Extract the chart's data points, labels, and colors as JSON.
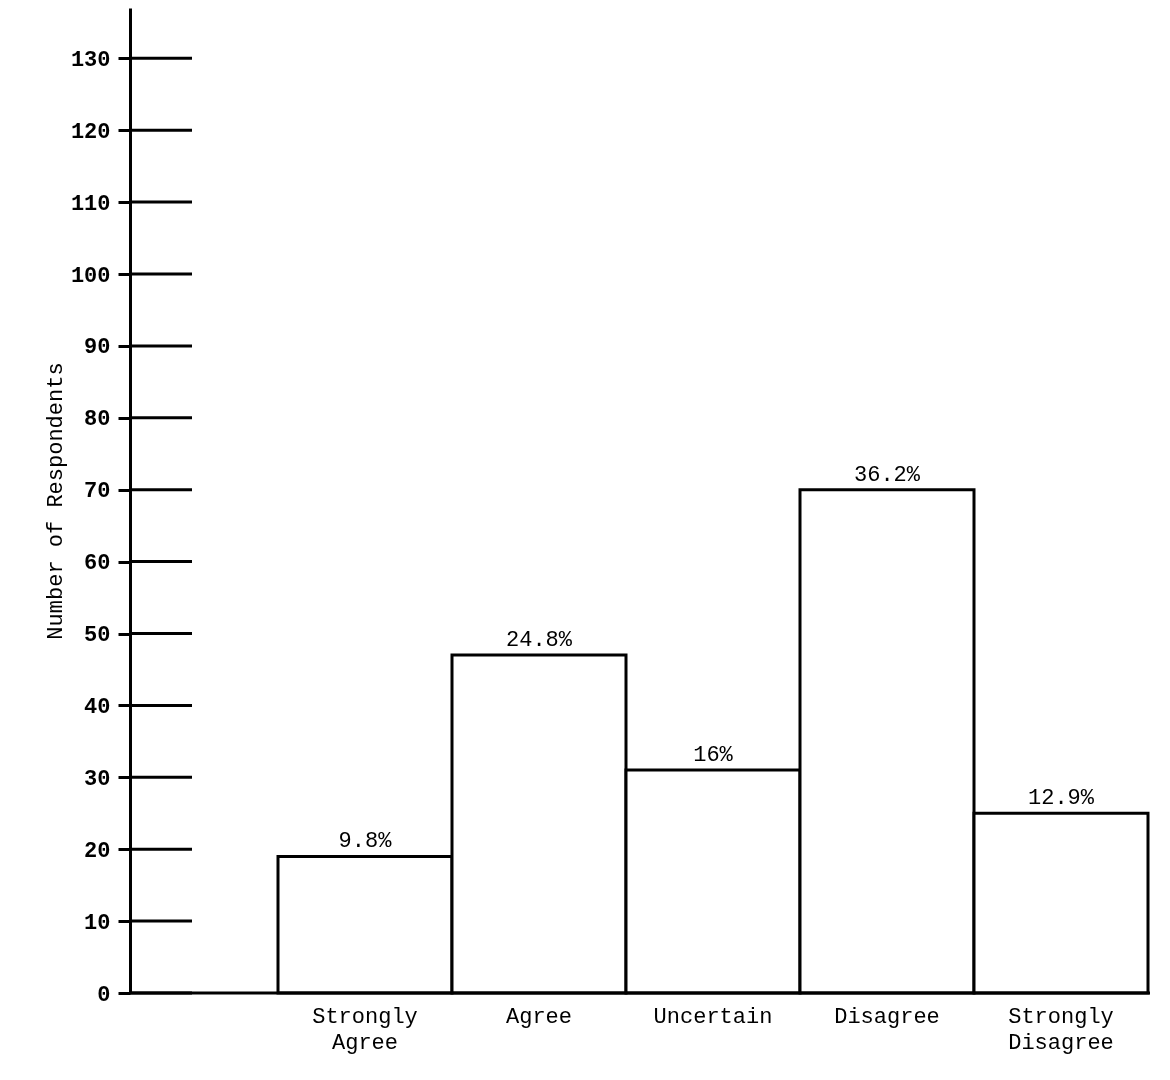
{
  "chart_data": {
    "type": "bar",
    "ylabel": "Number of Respondents",
    "categories": [
      "Strongly Agree",
      "Agree",
      "Uncertain",
      "Disagree",
      "Strongly Disagree"
    ],
    "values": [
      19,
      47,
      31,
      70,
      25
    ],
    "annotations": [
      {
        "text": "9.8%",
        "x": "Strongly Agree",
        "y": 19
      },
      {
        "text": "24.8%",
        "x": "Agree",
        "y": 47
      },
      {
        "text": "16%",
        "x": "Uncertain",
        "y": 31
      },
      {
        "text": "36.2%",
        "x": "Disagree",
        "y": 70
      },
      {
        "text": "12.9%",
        "x": "Strongly Disagree",
        "y": 25
      }
    ],
    "color": "#ffffff",
    "ylim": [
      0,
      137
    ],
    "yticks": [
      0,
      10,
      20,
      30,
      40,
      50,
      60,
      70,
      80,
      90,
      100,
      110,
      120,
      130
    ],
    "grid": false
  }
}
